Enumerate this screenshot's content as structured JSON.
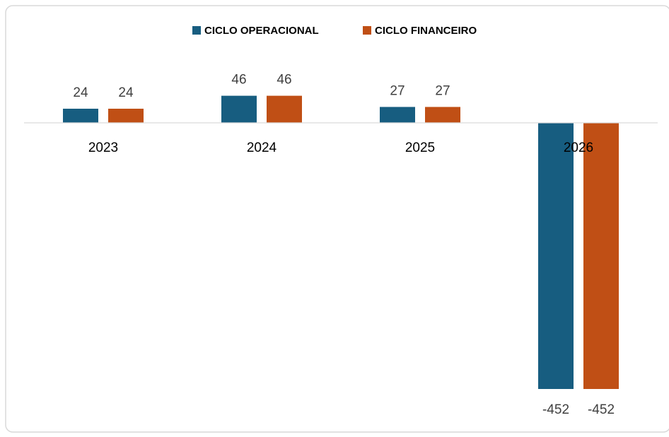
{
  "chart_data": {
    "type": "bar",
    "categories": [
      "2023",
      "2024",
      "2025",
      "2026"
    ],
    "series": [
      {
        "name": "CICLO OPERACIONAL",
        "color": "#175d80",
        "values": [
          24,
          46,
          27,
          -452
        ]
      },
      {
        "name": "CICLO FINANCEIRO",
        "color": "#c04f15",
        "values": [
          24,
          46,
          27,
          -452
        ]
      }
    ],
    "legend": "top"
  }
}
